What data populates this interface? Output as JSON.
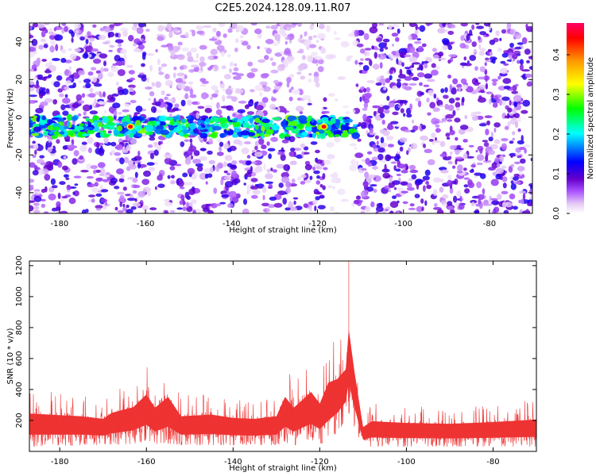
{
  "title": "C2E5.2024.128.09.11.R07",
  "chart_data": [
    {
      "type": "heatmap",
      "xlabel": "Height of straight line (km)",
      "ylabel": "Frequency (Hz)",
      "xlim": [
        -187,
        -70
      ],
      "ylim": [
        -51,
        50
      ],
      "x_ticks": [
        -180,
        -160,
        -140,
        -120,
        -100,
        -80
      ],
      "y_ticks": [
        -40,
        -20,
        0,
        20,
        40
      ],
      "colorbar": {
        "label": "Normalized spectral amplitude",
        "range": [
          0,
          0.48
        ],
        "ticks": [
          0.0,
          0.1,
          0.2,
          0.3,
          0.4
        ],
        "colormap": [
          "#ffffff",
          "#e6ccf5",
          "#a64dff",
          "#6600cc",
          "#0000ff",
          "#00ffff",
          "#00ff00",
          "#ffff00",
          "#ff9900",
          "#ff0000",
          "#ff0066"
        ]
      },
      "features": {
        "background_noise_amplitude": [
          0.0,
          0.12
        ],
        "signal_band_hz": [
          -10,
          0
        ],
        "signal_band_extent_km": [
          -187,
          -111
        ],
        "signal_peak_amplitude": 0.45,
        "signal_peaks_km": [
          -163.5,
          -118.5
        ],
        "low_noise_gap_km": [
          -118,
          -111
        ]
      }
    },
    {
      "type": "line",
      "xlabel": "Height of straight line (km)",
      "ylabel": "SNR (10 * v/v)",
      "xlim": [
        -187,
        -70
      ],
      "ylim": [
        0,
        1230
      ],
      "x_ticks": [
        -180,
        -160,
        -140,
        -120,
        -100,
        -80
      ],
      "y_ticks": [
        200,
        400,
        600,
        800,
        1000,
        1200
      ],
      "color": "#ee3333",
      "envelope": {
        "x": [
          -187,
          -175,
          -170,
          -168,
          -163,
          -160,
          -158,
          -155,
          -152,
          -145,
          -140,
          -135,
          -130,
          -128,
          -126,
          -122,
          -120,
          -118,
          -116,
          -114,
          -113.3,
          -112,
          -110,
          -108,
          -100,
          -90,
          -80,
          -70
        ],
        "y_max": [
          420,
          380,
          350,
          420,
          480,
          620,
          480,
          600,
          380,
          400,
          360,
          350,
          380,
          600,
          480,
          650,
          520,
          760,
          750,
          800,
          1230,
          820,
          260,
          330,
          310,
          300,
          320,
          350
        ],
        "y_min": [
          30,
          40,
          40,
          40,
          50,
          60,
          40,
          50,
          40,
          40,
          40,
          40,
          40,
          50,
          40,
          60,
          50,
          60,
          120,
          200,
          250,
          150,
          30,
          30,
          30,
          30,
          30,
          30
        ]
      }
    }
  ]
}
